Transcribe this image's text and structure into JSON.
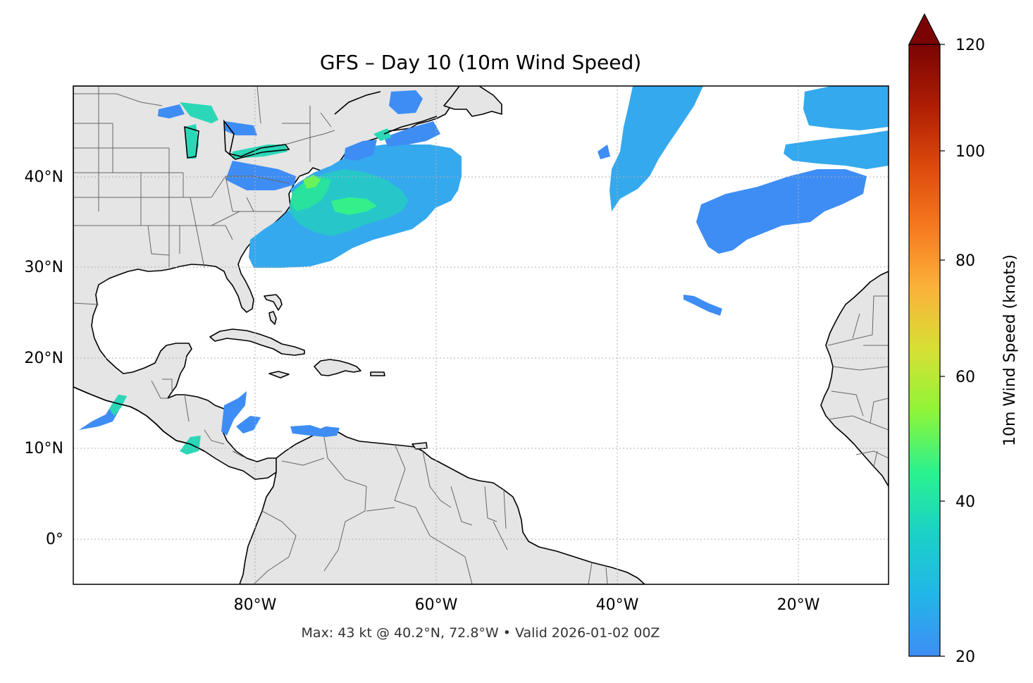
{
  "map": {
    "title": "GFS – Day 10 (10m Wind Speed)",
    "footer": "Max: 43 kt @ 40.2°N, 72.8°W • Valid 2026-01-02 00Z",
    "lon_ticks": [
      "80°W",
      "60°W",
      "40°W",
      "20°W"
    ],
    "lat_ticks": [
      "40°N",
      "30°N",
      "20°N",
      "10°N",
      "0°"
    ],
    "extent": {
      "lon": [
        -100,
        -10
      ],
      "lat": [
        -5,
        50
      ]
    },
    "land_color": "#e5e5e5",
    "coast_color": "#000000",
    "border_color": "#666666",
    "gridlines": true
  },
  "colorbar": {
    "label": "10m Wind Speed (knots)",
    "ticks": [
      "20",
      "40",
      "60",
      "80",
      "100",
      "120"
    ],
    "min": 20,
    "max": 120,
    "extend": "max",
    "cmap": [
      "#3e8df5",
      "#22b6e8",
      "#1bd1c8",
      "#2af28e",
      "#8ef539",
      "#d6e034",
      "#fbb33a",
      "#f67a1f",
      "#dc4a0c",
      "#ae1d04",
      "#7a0403"
    ]
  }
}
